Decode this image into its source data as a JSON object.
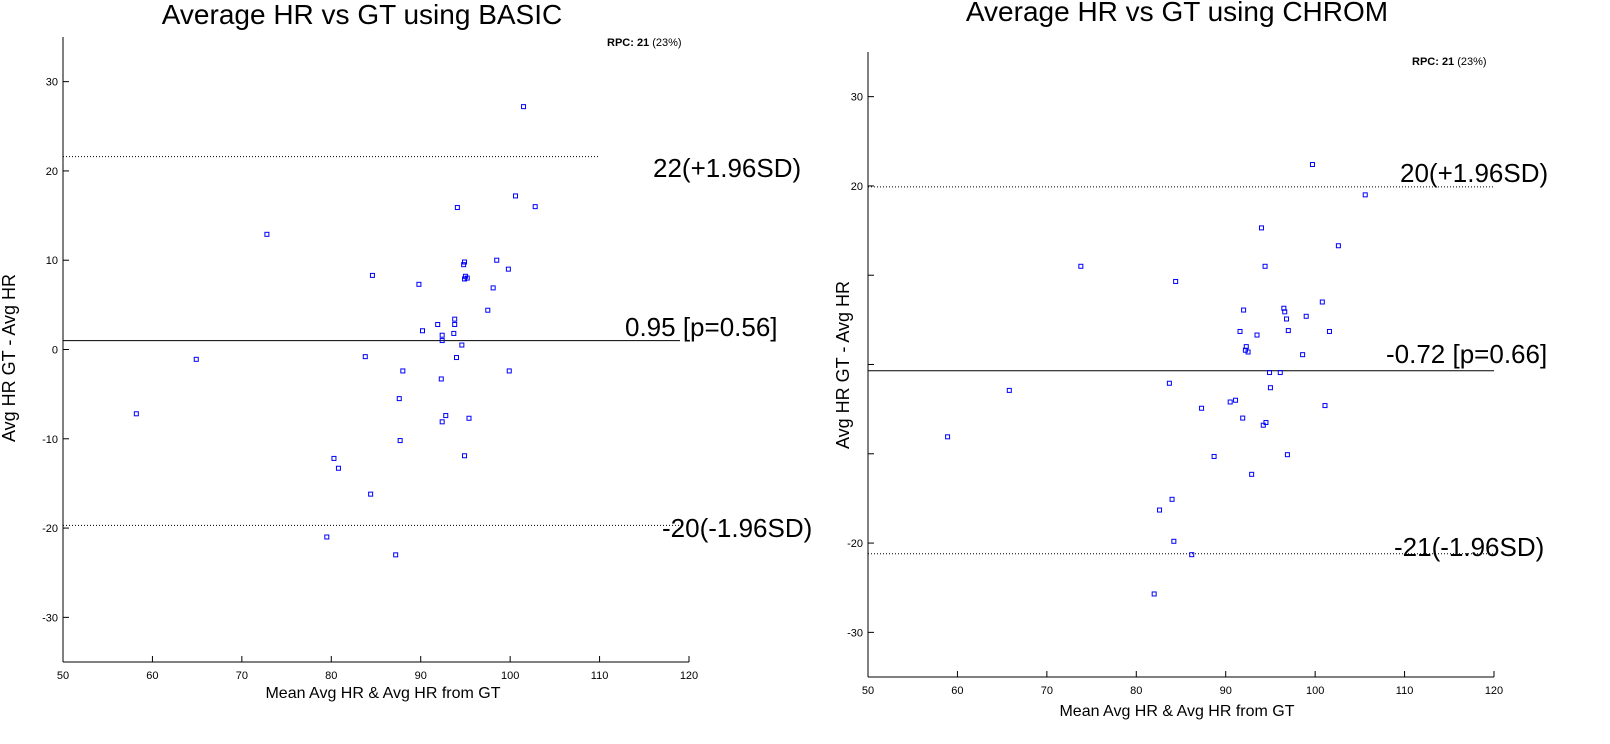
{
  "chart_data": [
    {
      "type": "scatter",
      "title": "Average HR vs GT using BASIC",
      "xlabel": "Mean Avg HR & Avg HR from GT",
      "ylabel": "Avg HR GT - Avg HR",
      "xlim": [
        50,
        120
      ],
      "ylim": [
        -35,
        35
      ],
      "xticks": [
        "50",
        "60",
        "70",
        "80",
        "90",
        "100",
        "110",
        "120"
      ],
      "yticks": [
        "-30",
        "-20",
        "-10",
        "0",
        "10",
        "20",
        "30"
      ],
      "rpc_label": "RPC: 21",
      "rpc_pct": "(23%)",
      "mean_line": {
        "value": 1.0,
        "label": "0.95 [p=0.56]"
      },
      "upper_loa": {
        "value": 21.6,
        "label": "22(+1.96SD)"
      },
      "lower_loa": {
        "value": -19.7,
        "label": "-20(-1.96SD)"
      },
      "marker_color": "#0000ff",
      "points": [
        [
          58.2,
          -7.2
        ],
        [
          64.9,
          -1.1
        ],
        [
          72.8,
          12.9
        ],
        [
          79.5,
          -21.0
        ],
        [
          80.3,
          -12.2
        ],
        [
          80.8,
          -13.3
        ],
        [
          83.8,
          -0.8
        ],
        [
          84.4,
          -16.2
        ],
        [
          84.6,
          8.3
        ],
        [
          87.2,
          -23.0
        ],
        [
          87.6,
          -5.5
        ],
        [
          87.7,
          -10.2
        ],
        [
          88.0,
          -2.4
        ],
        [
          89.8,
          7.3
        ],
        [
          90.2,
          2.1
        ],
        [
          91.9,
          2.8
        ],
        [
          92.3,
          -3.3
        ],
        [
          92.4,
          1.6
        ],
        [
          92.4,
          1.0
        ],
        [
          92.4,
          -8.1
        ],
        [
          92.8,
          -7.4
        ],
        [
          93.7,
          1.8
        ],
        [
          93.8,
          2.8
        ],
        [
          93.8,
          3.4
        ],
        [
          94.0,
          -0.9
        ],
        [
          94.1,
          15.9
        ],
        [
          94.6,
          0.5
        ],
        [
          94.8,
          9.5
        ],
        [
          94.9,
          9.8
        ],
        [
          94.9,
          7.9
        ],
        [
          95.0,
          8.2
        ],
        [
          94.9,
          -11.9
        ],
        [
          95.2,
          8.0
        ],
        [
          95.4,
          -7.7
        ],
        [
          97.5,
          4.4
        ],
        [
          98.1,
          6.9
        ],
        [
          98.5,
          10.0
        ],
        [
          99.8,
          9.0
        ],
        [
          99.9,
          -2.4
        ],
        [
          100.6,
          17.2
        ],
        [
          101.5,
          27.2
        ],
        [
          102.8,
          16.0
        ]
      ]
    },
    {
      "type": "scatter",
      "title": "Average HR vs GT using CHROM",
      "xlabel": "Mean Avg HR & Avg HR from GT",
      "ylabel": "Avg HR GT - Avg HR",
      "xlim": [
        50,
        120
      ],
      "ylim": [
        -35,
        35
      ],
      "xticks": [
        "50",
        "60",
        "70",
        "80",
        "90",
        "100",
        "110",
        "120"
      ],
      "yticks": [
        "-30",
        "-20",
        "",
        "",
        "",
        "20",
        "30"
      ],
      "rpc_label": "RPC: 21",
      "rpc_pct": "(23%)",
      "mean_line": {
        "value": -0.7,
        "label": "-0.72 [p=0.66]"
      },
      "upper_loa": {
        "value": 19.9,
        "label": "20(+1.96SD)"
      },
      "lower_loa": {
        "value": -21.2,
        "label": "-21(-1.96SD)"
      },
      "marker_color": "#0000ff",
      "points": [
        [
          58.9,
          -8.1
        ],
        [
          65.8,
          -2.9
        ],
        [
          73.8,
          11.0
        ],
        [
          82.0,
          -25.7
        ],
        [
          82.6,
          -16.3
        ],
        [
          83.7,
          -2.1
        ],
        [
          84.0,
          -15.1
        ],
        [
          84.2,
          -19.8
        ],
        [
          84.4,
          9.3
        ],
        [
          86.2,
          -21.3
        ],
        [
          87.3,
          -4.9
        ],
        [
          88.7,
          -10.3
        ],
        [
          90.5,
          -4.2
        ],
        [
          91.1,
          -4.0
        ],
        [
          91.6,
          3.7
        ],
        [
          91.9,
          -6.0
        ],
        [
          92.0,
          6.1
        ],
        [
          92.2,
          1.6
        ],
        [
          92.3,
          2.0
        ],
        [
          92.5,
          1.4
        ],
        [
          92.9,
          -12.3
        ],
        [
          93.5,
          3.3
        ],
        [
          94.0,
          15.3
        ],
        [
          94.2,
          -6.8
        ],
        [
          94.4,
          11.0
        ],
        [
          94.5,
          -6.5
        ],
        [
          94.9,
          -0.9
        ],
        [
          95.0,
          -2.6
        ],
        [
          96.1,
          -0.9
        ],
        [
          96.5,
          6.3
        ],
        [
          96.6,
          5.9
        ],
        [
          96.8,
          5.1
        ],
        [
          96.9,
          -10.1
        ],
        [
          97.0,
          3.8
        ],
        [
          98.6,
          1.1
        ],
        [
          99.0,
          5.4
        ],
        [
          99.7,
          22.4
        ],
        [
          100.8,
          7.0
        ],
        [
          101.1,
          -4.6
        ],
        [
          101.6,
          3.7
        ],
        [
          102.6,
          13.3
        ],
        [
          105.6,
          19.0
        ]
      ]
    }
  ]
}
